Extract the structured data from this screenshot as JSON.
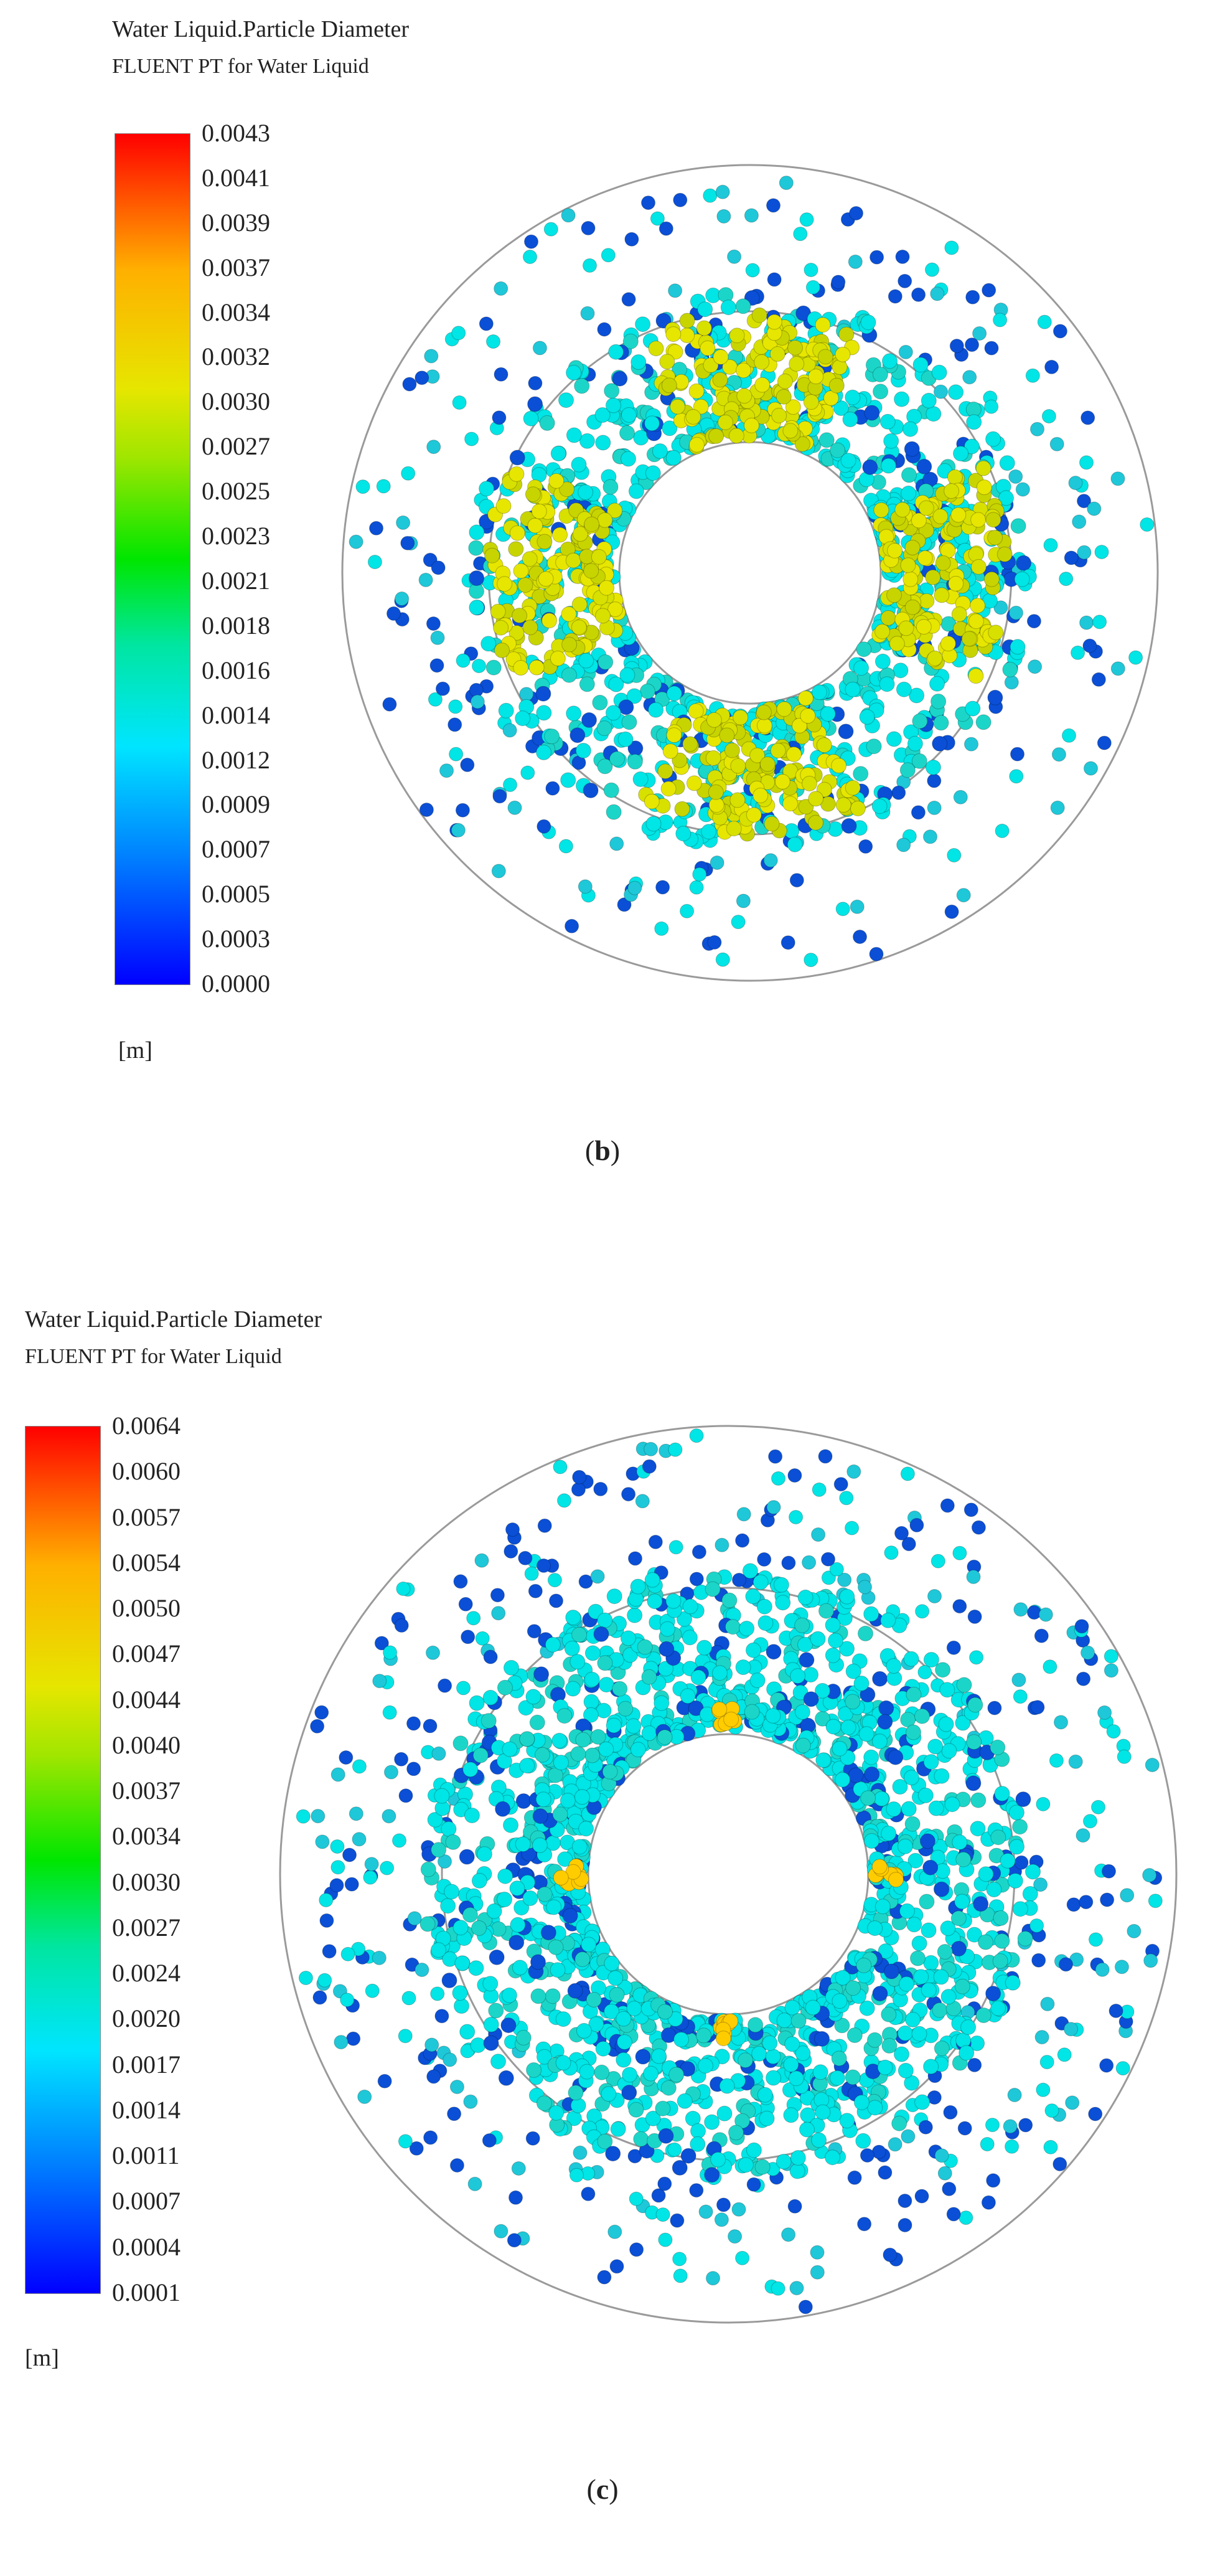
{
  "panels": [
    {
      "id": "b",
      "title": "Water Liquid.Particle Diameter",
      "subtitle": "FLUENT PT for Water Liquid",
      "unit": "[m]",
      "caption": {
        "open": "(",
        "letter": "b",
        "close": ")"
      },
      "colorbar_ticks": [
        "0.0043",
        "0.0041",
        "0.0039",
        "0.0037",
        "0.0034",
        "0.0032",
        "0.0030",
        "0.0027",
        "0.0025",
        "0.0023",
        "0.0021",
        "0.0018",
        "0.0016",
        "0.0014",
        "0.0012",
        "0.0009",
        "0.0007",
        "0.0005",
        "0.0003",
        "0.0000"
      ],
      "colors": {
        "outer_ring": "#9a9a9a",
        "particles": [
          "#00e5e5",
          "#1ec8d8",
          "#0a4fd6",
          "#1bd6c8",
          "#d8e000",
          "#c8d400",
          "#ff8000"
        ]
      }
    },
    {
      "id": "c",
      "title": "Water Liquid.Particle Diameter",
      "subtitle": "FLUENT PT for Water Liquid",
      "unit": "[m]",
      "caption": {
        "open": "(",
        "letter": "c",
        "close": ")"
      },
      "colorbar_ticks": [
        "0.0064",
        "0.0060",
        "0.0057",
        "0.0054",
        "0.0050",
        "0.0047",
        "0.0044",
        "0.0040",
        "0.0037",
        "0.0034",
        "0.0030",
        "0.0027",
        "0.0024",
        "0.0020",
        "0.0017",
        "0.0014",
        "0.0011",
        "0.0007",
        "0.0004",
        "0.0001"
      ],
      "colors": {
        "outer_ring": "#9a9a9a",
        "particles": [
          "#00e5e5",
          "#1ec8d8",
          "#0a4fd6",
          "#1bd6c8",
          "#ffcc00"
        ]
      }
    }
  ]
}
